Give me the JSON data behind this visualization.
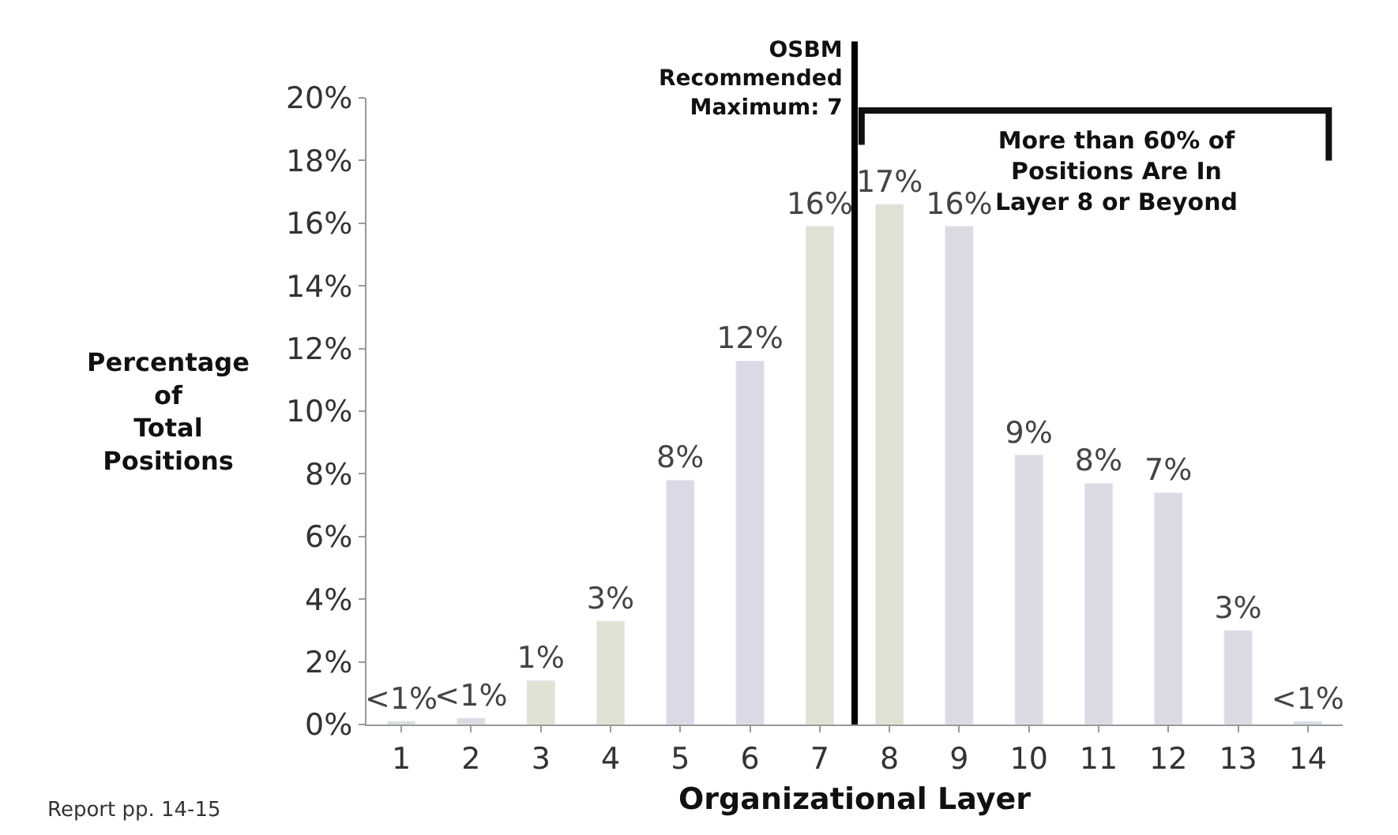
{
  "chart_data": {
    "type": "bar",
    "xlabel": "Organizational Layer",
    "ylabel": "Percentage\nof\nTotal\nPositions",
    "x": [
      1,
      2,
      3,
      4,
      5,
      6,
      7,
      8,
      9,
      10,
      11,
      12,
      13,
      14
    ],
    "values": [
      0.1,
      0.2,
      1.4,
      3.3,
      7.8,
      11.6,
      15.9,
      16.6,
      15.9,
      8.6,
      7.7,
      7.4,
      3.0,
      0.1
    ],
    "value_labels": [
      "<1%",
      "<1%",
      "1%",
      "3%",
      "8%",
      "12%",
      "16%",
      "17%",
      "16%",
      "9%",
      "8%",
      "7%",
      "3%",
      "<1%"
    ],
    "colors": [
      "#d9ddd0",
      "#d9dbe0",
      "#dfe3d4",
      "#dfe3d4",
      "#d9dae6",
      "#d9dae6",
      "#dde2d2",
      "#dde2d2",
      "#dadbe3",
      "#dadbe3",
      "#dadbe3",
      "#dadbe3",
      "#dadbe3",
      "#dadbe3"
    ],
    "xlim": [
      0.5,
      14.5
    ],
    "xticks": [
      1,
      2,
      3,
      4,
      5,
      6,
      7,
      8,
      9,
      10,
      11,
      12,
      13,
      14
    ],
    "ylim": [
      0,
      20
    ],
    "yticks": [
      {
        "value": 0,
        "label": "0%"
      },
      {
        "value": 2,
        "label": "2%"
      },
      {
        "value": 4,
        "label": "4%"
      },
      {
        "value": 6,
        "label": "6%"
      },
      {
        "value": 8,
        "label": "8%"
      },
      {
        "value": 10,
        "label": "10%"
      },
      {
        "value": 12,
        "label": "12%"
      },
      {
        "value": 14,
        "label": "14%"
      },
      {
        "value": 16,
        "label": "16%"
      },
      {
        "value": 18,
        "label": "18%"
      },
      {
        "value": 20,
        "label": "20%"
      }
    ],
    "ref_lines": [
      {
        "axis": "x",
        "value": 7.5,
        "label": "OSBM\nRecommended\nMaximum: 7",
        "color": "#000000"
      }
    ],
    "annotations": [
      "More than 60% of\nPositions Are In\nLayer 8 or Beyond",
      "Report pp. 14-15"
    ],
    "tick_labels": "xy"
  }
}
